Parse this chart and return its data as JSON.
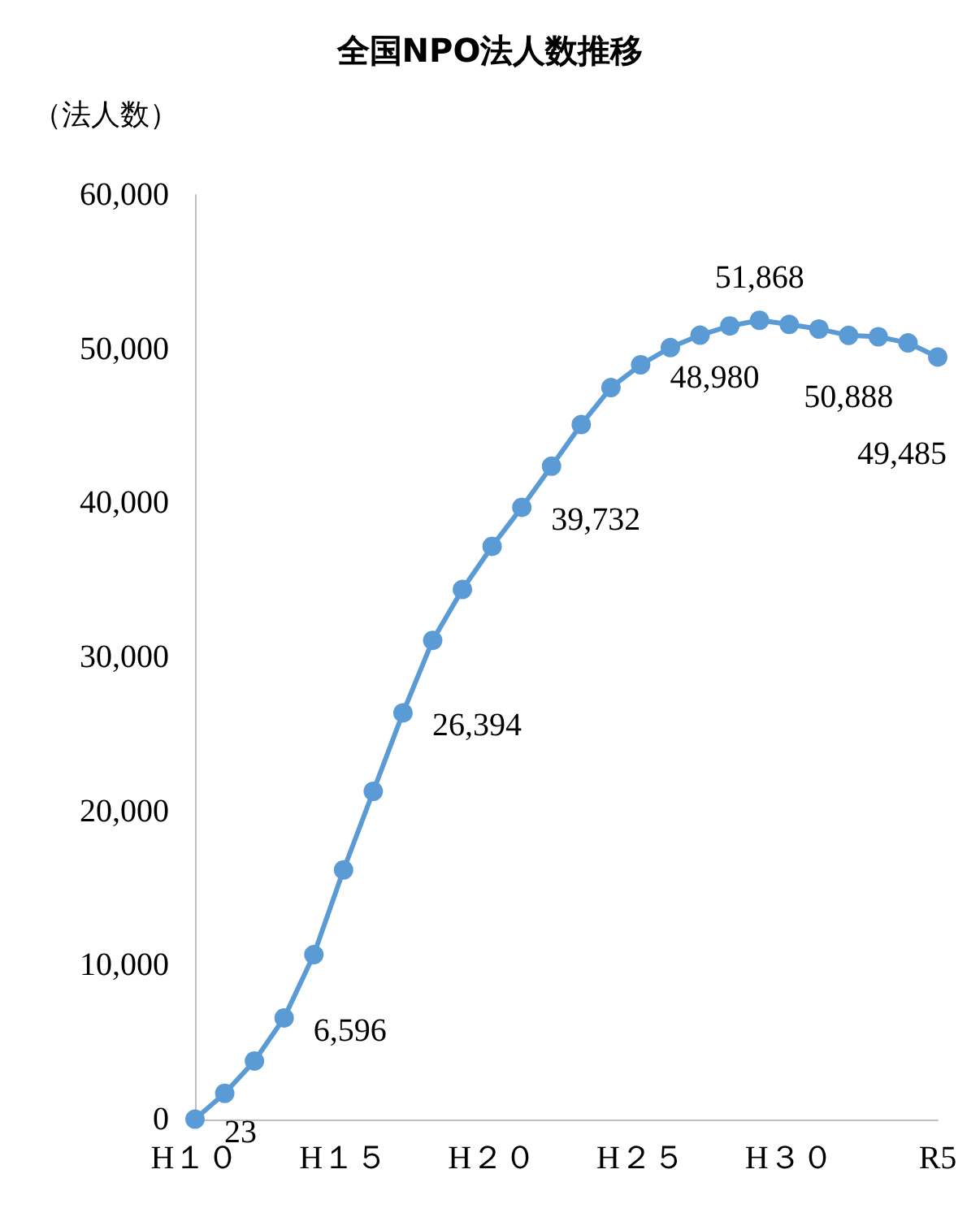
{
  "chart_data": {
    "type": "line",
    "title": "全国NPO法人数推移",
    "ylabel": "（法人数）",
    "categories": [
      "H１０",
      null,
      null,
      null,
      null,
      "H１５",
      null,
      null,
      null,
      null,
      "H２０",
      null,
      null,
      null,
      null,
      "H２５",
      null,
      null,
      null,
      null,
      "H３０",
      null,
      null,
      null,
      null,
      "R5"
    ],
    "series": [
      {
        "color": "#5b9bd5",
        "values": [
          23,
          1700,
          3800,
          6596,
          10700,
          16200,
          21300,
          26394,
          31100,
          34400,
          37200,
          39732,
          42400,
          45100,
          47500,
          48980,
          50100,
          50900,
          51500,
          51868,
          51600,
          51300,
          50888,
          50800,
          50400,
          49485
        ],
        "value_labels": [
          "23",
          null,
          null,
          "6,596",
          null,
          null,
          null,
          "26,394",
          null,
          null,
          null,
          "39,732",
          null,
          null,
          null,
          "48,980",
          null,
          null,
          null,
          "51,868",
          null,
          null,
          "50,888",
          null,
          null,
          "49,485"
        ]
      }
    ],
    "ylim": [
      0,
      60000
    ],
    "yticks": [
      0,
      {
        "value": 10000,
        "label": "10,000"
      },
      {
        "value": 20000,
        "label": "20,000"
      },
      {
        "value": 30000,
        "label": "30,000"
      },
      {
        "value": 40000,
        "label": "40,000"
      },
      {
        "value": 50000,
        "label": "50,000"
      },
      {
        "value": 60000,
        "label": "60,000"
      }
    ],
    "grid": false,
    "marker": "circle",
    "line_style": "solid"
  }
}
